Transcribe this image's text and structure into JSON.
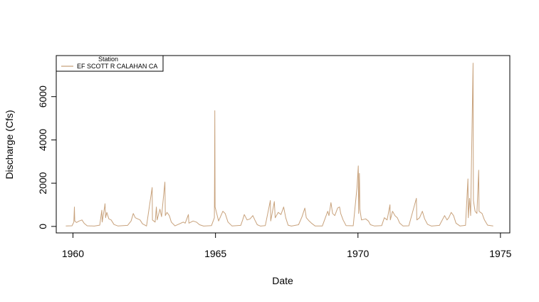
{
  "chart_data": {
    "type": "line",
    "title": "",
    "xlabel": "Date",
    "ylabel": "Discharge (Cfs)",
    "x_scale": "date",
    "xlim": [
      "1959-06-01",
      "1975-05-01"
    ],
    "ylim": [
      -300,
      7900
    ],
    "x_ticks": [
      {
        "value": "1960-01-01",
        "label": "1960"
      },
      {
        "value": "1965-01-01",
        "label": "1965"
      },
      {
        "value": "1970-01-01",
        "label": "1970"
      },
      {
        "value": "1975-01-01",
        "label": "1975"
      }
    ],
    "y_ticks": [
      {
        "value": 0,
        "label": "0"
      },
      {
        "value": 2000,
        "label": "2000"
      },
      {
        "value": 4000,
        "label": "4000"
      },
      {
        "value": 6000,
        "label": "6000"
      }
    ],
    "grid": false,
    "legend": {
      "title": "Station",
      "placement": "top-left"
    },
    "series": [
      {
        "name": "EF SCOTT R CALAHAN CA",
        "color": "#c8a27c",
        "points": [
          [
            "1959-10-01",
            20
          ],
          [
            "1959-12-20",
            30
          ],
          [
            "1960-01-12",
            200
          ],
          [
            "1960-01-20",
            900
          ],
          [
            "1960-01-24",
            250
          ],
          [
            "1960-02-15",
            180
          ],
          [
            "1960-03-20",
            250
          ],
          [
            "1960-04-25",
            300
          ],
          [
            "1960-05-25",
            140
          ],
          [
            "1960-07-01",
            30
          ],
          [
            "1960-09-30",
            15
          ],
          [
            "1960-12-10",
            60
          ],
          [
            "1961-01-05",
            750
          ],
          [
            "1961-01-10",
            200
          ],
          [
            "1961-02-10",
            900
          ],
          [
            "1961-02-15",
            1050
          ],
          [
            "1961-02-22",
            400
          ],
          [
            "1961-03-10",
            650
          ],
          [
            "1961-04-05",
            350
          ],
          [
            "1961-05-05",
            300
          ],
          [
            "1961-06-10",
            90
          ],
          [
            "1961-08-01",
            20
          ],
          [
            "1961-12-01",
            50
          ],
          [
            "1962-01-15",
            250
          ],
          [
            "1962-02-12",
            600
          ],
          [
            "1962-03-10",
            400
          ],
          [
            "1962-04-10",
            350
          ],
          [
            "1962-05-10",
            300
          ],
          [
            "1962-06-10",
            120
          ],
          [
            "1962-08-01",
            20
          ],
          [
            "1962-10-12",
            1800
          ],
          [
            "1962-10-16",
            300
          ],
          [
            "1962-11-20",
            200
          ],
          [
            "1962-12-05",
            900
          ],
          [
            "1962-12-15",
            300
          ],
          [
            "1963-01-20",
            800
          ],
          [
            "1963-02-10",
            450
          ],
          [
            "1963-03-25",
            2050
          ],
          [
            "1963-03-30",
            500
          ],
          [
            "1963-04-20",
            650
          ],
          [
            "1963-05-20",
            500
          ],
          [
            "1963-06-15",
            200
          ],
          [
            "1963-08-01",
            25
          ],
          [
            "1963-11-15",
            200
          ],
          [
            "1963-12-10",
            150
          ],
          [
            "1964-01-20",
            550
          ],
          [
            "1964-01-26",
            150
          ],
          [
            "1964-03-20",
            250
          ],
          [
            "1964-05-01",
            200
          ],
          [
            "1964-06-10",
            80
          ],
          [
            "1964-08-01",
            15
          ],
          [
            "1964-11-10",
            40
          ],
          [
            "1964-12-18",
            400
          ],
          [
            "1964-12-23",
            5350
          ],
          [
            "1964-12-27",
            900
          ],
          [
            "1965-01-10",
            700
          ],
          [
            "1965-02-10",
            250
          ],
          [
            "1965-04-05",
            700
          ],
          [
            "1965-05-05",
            600
          ],
          [
            "1965-06-10",
            200
          ],
          [
            "1965-08-01",
            20
          ],
          [
            "1965-11-20",
            50
          ],
          [
            "1965-12-15",
            300
          ],
          [
            "1966-01-05",
            550
          ],
          [
            "1966-02-10",
            300
          ],
          [
            "1966-03-20",
            350
          ],
          [
            "1966-04-25",
            500
          ],
          [
            "1966-05-20",
            300
          ],
          [
            "1966-06-20",
            80
          ],
          [
            "1966-08-01",
            15
          ],
          [
            "1966-10-01",
            40
          ],
          [
            "1966-12-05",
            1200
          ],
          [
            "1966-12-10",
            250
          ],
          [
            "1967-01-25",
            1150
          ],
          [
            "1967-02-05",
            400
          ],
          [
            "1967-03-15",
            650
          ],
          [
            "1967-04-20",
            550
          ],
          [
            "1967-05-25",
            900
          ],
          [
            "1967-06-20",
            400
          ],
          [
            "1967-07-20",
            60
          ],
          [
            "1967-09-01",
            15
          ],
          [
            "1967-12-01",
            80
          ],
          [
            "1968-01-15",
            450
          ],
          [
            "1968-02-20",
            850
          ],
          [
            "1968-03-10",
            400
          ],
          [
            "1968-04-15",
            250
          ],
          [
            "1968-05-15",
            150
          ],
          [
            "1968-07-01",
            20
          ],
          [
            "1968-10-01",
            20
          ],
          [
            "1968-12-10",
            700
          ],
          [
            "1968-12-25",
            500
          ],
          [
            "1969-01-20",
            1100
          ],
          [
            "1969-02-10",
            600
          ],
          [
            "1969-03-10",
            500
          ],
          [
            "1969-04-15",
            850
          ],
          [
            "1969-05-10",
            900
          ],
          [
            "1969-05-25",
            600
          ],
          [
            "1969-06-25",
            300
          ],
          [
            "1969-08-01",
            40
          ],
          [
            "1969-11-01",
            30
          ],
          [
            "1969-12-20",
            1800
          ],
          [
            "1970-01-05",
            2800
          ],
          [
            "1970-01-10",
            600
          ],
          [
            "1970-01-20",
            2450
          ],
          [
            "1970-01-25",
            800
          ],
          [
            "1970-02-15",
            300
          ],
          [
            "1970-04-10",
            350
          ],
          [
            "1970-05-15",
            250
          ],
          [
            "1970-06-10",
            80
          ],
          [
            "1970-08-01",
            20
          ],
          [
            "1970-11-01",
            40
          ],
          [
            "1970-12-05",
            400
          ],
          [
            "1971-01-10",
            300
          ],
          [
            "1971-02-15",
            1000
          ],
          [
            "1971-02-20",
            300
          ],
          [
            "1971-03-20",
            700
          ],
          [
            "1971-04-20",
            500
          ],
          [
            "1971-05-20",
            400
          ],
          [
            "1971-06-20",
            150
          ],
          [
            "1971-08-01",
            20
          ],
          [
            "1971-10-15",
            30
          ],
          [
            "1972-01-20",
            1300
          ],
          [
            "1972-01-25",
            300
          ],
          [
            "1972-03-01",
            400
          ],
          [
            "1972-04-05",
            700
          ],
          [
            "1972-05-05",
            350
          ],
          [
            "1972-06-10",
            100
          ],
          [
            "1972-08-01",
            15
          ],
          [
            "1972-11-10",
            50
          ],
          [
            "1973-01-15",
            500
          ],
          [
            "1973-02-15",
            300
          ],
          [
            "1973-03-10",
            400
          ],
          [
            "1973-04-10",
            650
          ],
          [
            "1973-05-10",
            500
          ],
          [
            "1973-06-10",
            150
          ],
          [
            "1973-08-01",
            20
          ],
          [
            "1973-10-10",
            50
          ],
          [
            "1973-11-10",
            2200
          ],
          [
            "1973-11-15",
            400
          ],
          [
            "1973-12-01",
            1300
          ],
          [
            "1973-12-15",
            500
          ],
          [
            "1974-01-15",
            7550
          ],
          [
            "1974-01-20",
            1200
          ],
          [
            "1974-02-10",
            700
          ],
          [
            "1974-03-05",
            600
          ],
          [
            "1974-03-28",
            2600
          ],
          [
            "1974-04-02",
            700
          ],
          [
            "1974-04-20",
            650
          ],
          [
            "1974-05-10",
            600
          ],
          [
            "1974-06-10",
            300
          ],
          [
            "1974-07-20",
            60
          ],
          [
            "1974-09-30",
            20
          ]
        ]
      }
    ]
  }
}
